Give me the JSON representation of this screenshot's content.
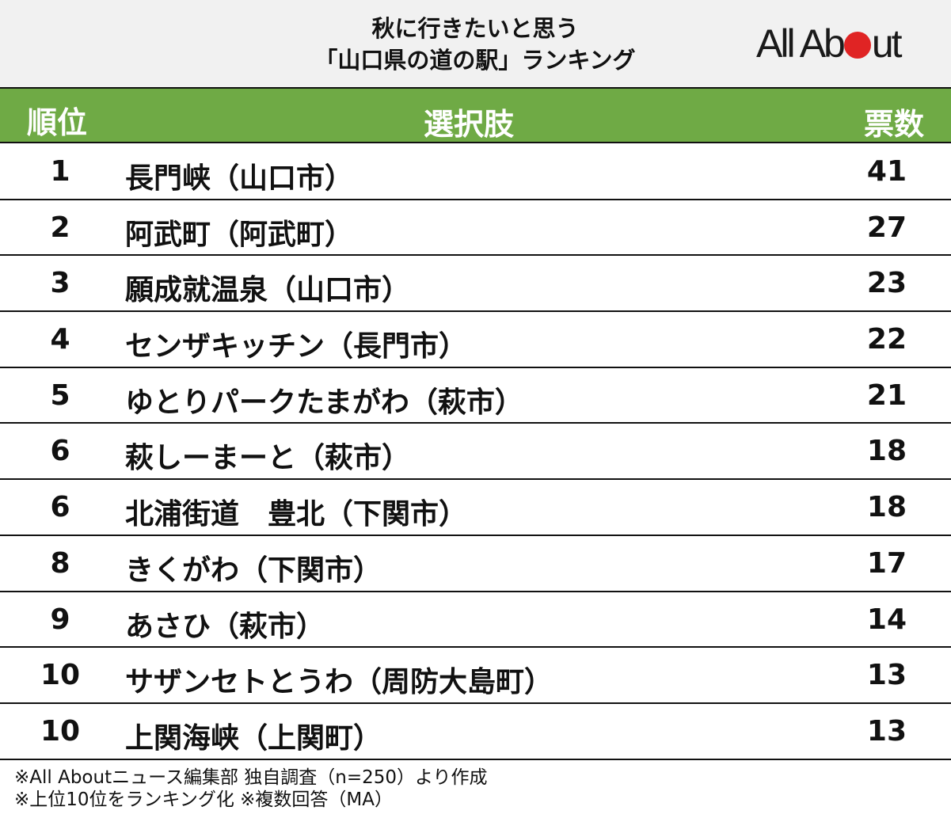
{
  "header": {
    "title_line1": "秋に行きたいと思う",
    "title_line2": "「山口県の道の駅」ランキング",
    "logo": {
      "text_before": "All Ab",
      "text_after": "ut",
      "dot_color": "#e02424"
    }
  },
  "table": {
    "columns": {
      "rank": "順位",
      "choice": "選択肢",
      "votes": "票数"
    },
    "header_bg": "#6faa45",
    "rows": [
      {
        "rank": "1",
        "choice": "長門峡（山口市）",
        "votes": "41"
      },
      {
        "rank": "2",
        "choice": "阿武町（阿武町）",
        "votes": "27"
      },
      {
        "rank": "3",
        "choice": "願成就温泉（山口市）",
        "votes": "23"
      },
      {
        "rank": "4",
        "choice": "センザキッチン（長門市）",
        "votes": "22"
      },
      {
        "rank": "5",
        "choice": "ゆとりパークたまがわ（萩市）",
        "votes": "21"
      },
      {
        "rank": "6",
        "choice": "萩しーまーと（萩市）",
        "votes": "18"
      },
      {
        "rank": "6",
        "choice": "北浦街道　豊北（下関市）",
        "votes": "18"
      },
      {
        "rank": "8",
        "choice": "きくがわ（下関市）",
        "votes": "17"
      },
      {
        "rank": "9",
        "choice": "あさひ（萩市）",
        "votes": "14"
      },
      {
        "rank": "10",
        "choice": "サザンセトとうわ（周防大島町）",
        "votes": "13"
      },
      {
        "rank": "10",
        "choice": "上関海峡（上関町）",
        "votes": "13"
      }
    ]
  },
  "footer": {
    "note1": "※All Aboutニュース編集部 独自調査（n=250）より作成",
    "note2": "※上位10位をランキング化 ※複数回答（MA）"
  },
  "chart_data": {
    "type": "table",
    "title": "秋に行きたいと思う「山口県の道の駅」ランキング",
    "columns": [
      "順位",
      "選択肢",
      "票数"
    ],
    "categories": [
      "長門峡（山口市）",
      "阿武町（阿武町）",
      "願成就温泉（山口市）",
      "センザキッチン（長門市）",
      "ゆとりパークたまがわ（萩市）",
      "萩しーまーと（萩市）",
      "北浦街道　豊北（下関市）",
      "きくがわ（下関市）",
      "あさひ（萩市）",
      "サザンセトとうわ（周防大島町）",
      "上関海峡（上関町）"
    ],
    "ranks": [
      1,
      2,
      3,
      4,
      5,
      6,
      6,
      8,
      9,
      10,
      10
    ],
    "values": [
      41,
      27,
      23,
      22,
      21,
      18,
      18,
      17,
      14,
      13,
      13
    ],
    "notes": [
      "※All Aboutニュース編集部 独自調査（n=250）より作成",
      "※上位10位をランキング化 ※複数回答（MA）"
    ]
  }
}
